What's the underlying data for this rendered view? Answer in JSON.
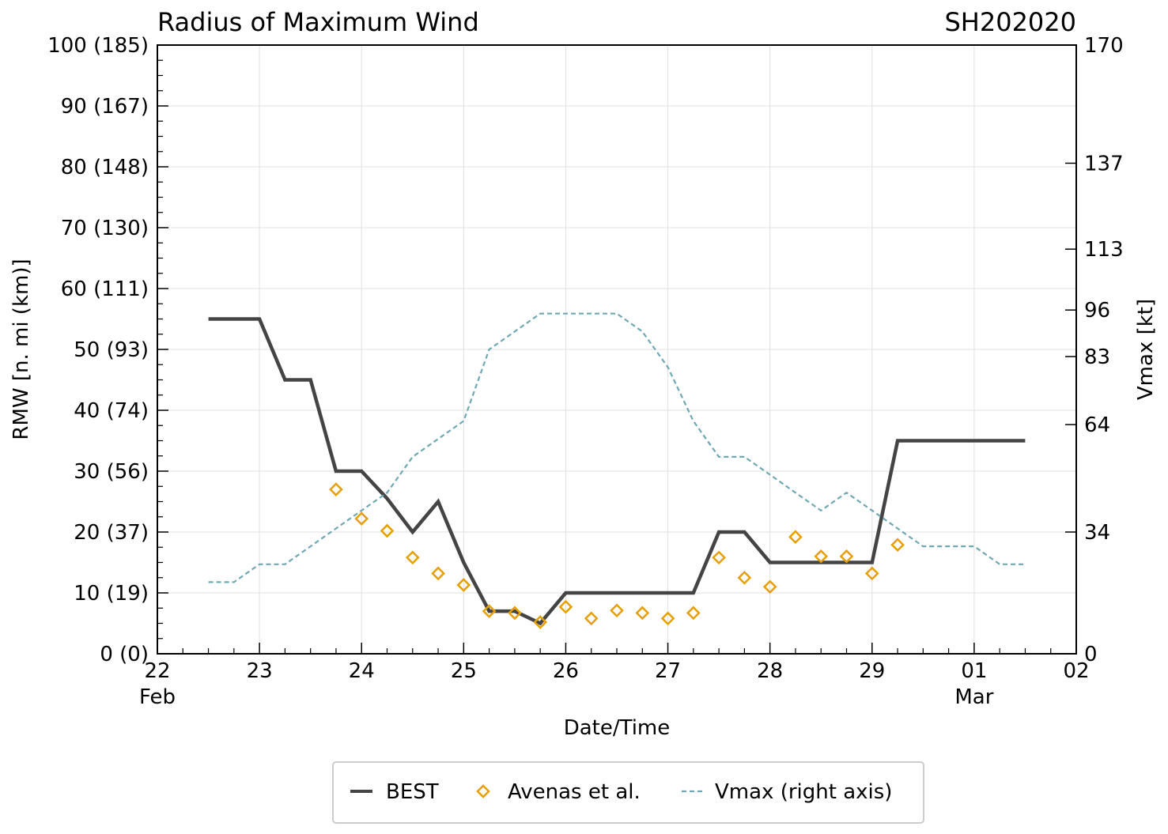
{
  "chart_data": {
    "type": "line",
    "title": "Radius of Maximum Wind",
    "storm_id": "SH202020",
    "xlabel": "Date/Time",
    "ylabel": "RMW [n. mi (km)]",
    "y2label": "Vmax [kt]",
    "xlim": [
      0,
      9
    ],
    "ylim": [
      0,
      100
    ],
    "y2lim": [
      0,
      170
    ],
    "x_unit": "days since 22 Feb 00Z",
    "x_ticks": [
      {
        "x": 0,
        "label": "22",
        "sub": "Feb"
      },
      {
        "x": 1,
        "label": "23",
        "sub": ""
      },
      {
        "x": 2,
        "label": "24",
        "sub": ""
      },
      {
        "x": 3,
        "label": "25",
        "sub": ""
      },
      {
        "x": 4,
        "label": "26",
        "sub": ""
      },
      {
        "x": 5,
        "label": "27",
        "sub": ""
      },
      {
        "x": 6,
        "label": "28",
        "sub": ""
      },
      {
        "x": 7,
        "label": "29",
        "sub": ""
      },
      {
        "x": 8,
        "label": "01",
        "sub": "Mar"
      },
      {
        "x": 9,
        "label": "02",
        "sub": ""
      }
    ],
    "y_ticks": [
      {
        "v": 0,
        "label": "0 (0)"
      },
      {
        "v": 10,
        "label": "10 (19)"
      },
      {
        "v": 20,
        "label": "20 (37)"
      },
      {
        "v": 30,
        "label": "30 (56)"
      },
      {
        "v": 40,
        "label": "40 (74)"
      },
      {
        "v": 50,
        "label": "50 (93)"
      },
      {
        "v": 60,
        "label": "60 (111)"
      },
      {
        "v": 70,
        "label": "70 (130)"
      },
      {
        "v": 80,
        "label": "80 (148)"
      },
      {
        "v": 90,
        "label": "90 (167)"
      },
      {
        "v": 100,
        "label": "100 (185)"
      }
    ],
    "y2_ticks": [
      {
        "v": 0,
        "label": "0"
      },
      {
        "v": 34,
        "label": "34"
      },
      {
        "v": 64,
        "label": "64"
      },
      {
        "v": 83,
        "label": "83"
      },
      {
        "v": 96,
        "label": "96"
      },
      {
        "v": 113,
        "label": "113"
      },
      {
        "v": 137,
        "label": "137"
      },
      {
        "v": 170,
        "label": "170"
      }
    ],
    "series": [
      {
        "name": "BEST",
        "style": "solid",
        "color": "#444444",
        "axis": "left",
        "x": [
          0.5,
          0.75,
          1.0,
          1.25,
          1.5,
          1.75,
          2.0,
          2.25,
          2.5,
          2.75,
          3.0,
          3.25,
          3.5,
          3.75,
          4.0,
          4.25,
          4.5,
          4.75,
          5.0,
          5.25,
          5.5,
          5.75,
          6.0,
          6.25,
          6.5,
          6.75,
          7.0,
          7.25,
          7.5,
          7.75,
          8.0,
          8.25,
          8.5
        ],
        "values": [
          55,
          55,
          55,
          45,
          45,
          30,
          30,
          25.5,
          20,
          25,
          15,
          7,
          7,
          5,
          10,
          10,
          10,
          10,
          10,
          10,
          20,
          20,
          15,
          15,
          15,
          15,
          15,
          35,
          35,
          35,
          35,
          35,
          35
        ]
      },
      {
        "name": "Avenas et al.",
        "style": "markers",
        "color": "#e69f00",
        "axis": "left",
        "x": [
          1.75,
          2.0,
          2.25,
          2.5,
          2.75,
          3.0,
          3.25,
          3.5,
          3.75,
          4.0,
          4.25,
          4.5,
          4.75,
          5.0,
          5.25,
          5.5,
          5.75,
          6.0,
          6.25,
          6.5,
          6.75,
          7.0,
          7.25
        ],
        "values": [
          27,
          22.2,
          20.2,
          15.8,
          13.2,
          11.3,
          7,
          6.7,
          5.2,
          7.7,
          5.8,
          7.1,
          6.7,
          5.8,
          6.7,
          15.8,
          12.5,
          11,
          19.2,
          16,
          16,
          13.2,
          17.9
        ]
      },
      {
        "name": "Vmax (right axis)",
        "style": "dashed",
        "color": "#6fa8b3",
        "axis": "right",
        "x": [
          0.5,
          0.75,
          1.0,
          1.25,
          1.5,
          1.75,
          2.0,
          2.25,
          2.5,
          2.75,
          3.0,
          3.25,
          3.5,
          3.75,
          4.0,
          4.25,
          4.5,
          4.75,
          5.0,
          5.25,
          5.5,
          5.75,
          6.0,
          6.25,
          6.5,
          6.75,
          7.0,
          7.25,
          7.5,
          7.75,
          8.0,
          8.25,
          8.5
        ],
        "values": [
          20,
          20,
          25,
          25,
          30,
          35,
          40,
          45,
          55,
          60,
          65,
          85,
          90,
          95,
          95,
          95,
          95,
          90,
          80,
          65,
          55,
          55,
          50,
          45,
          40,
          45,
          40,
          35,
          30,
          30,
          30,
          25,
          25
        ]
      }
    ],
    "legend": {
      "position": "bottom"
    },
    "grid": true
  }
}
